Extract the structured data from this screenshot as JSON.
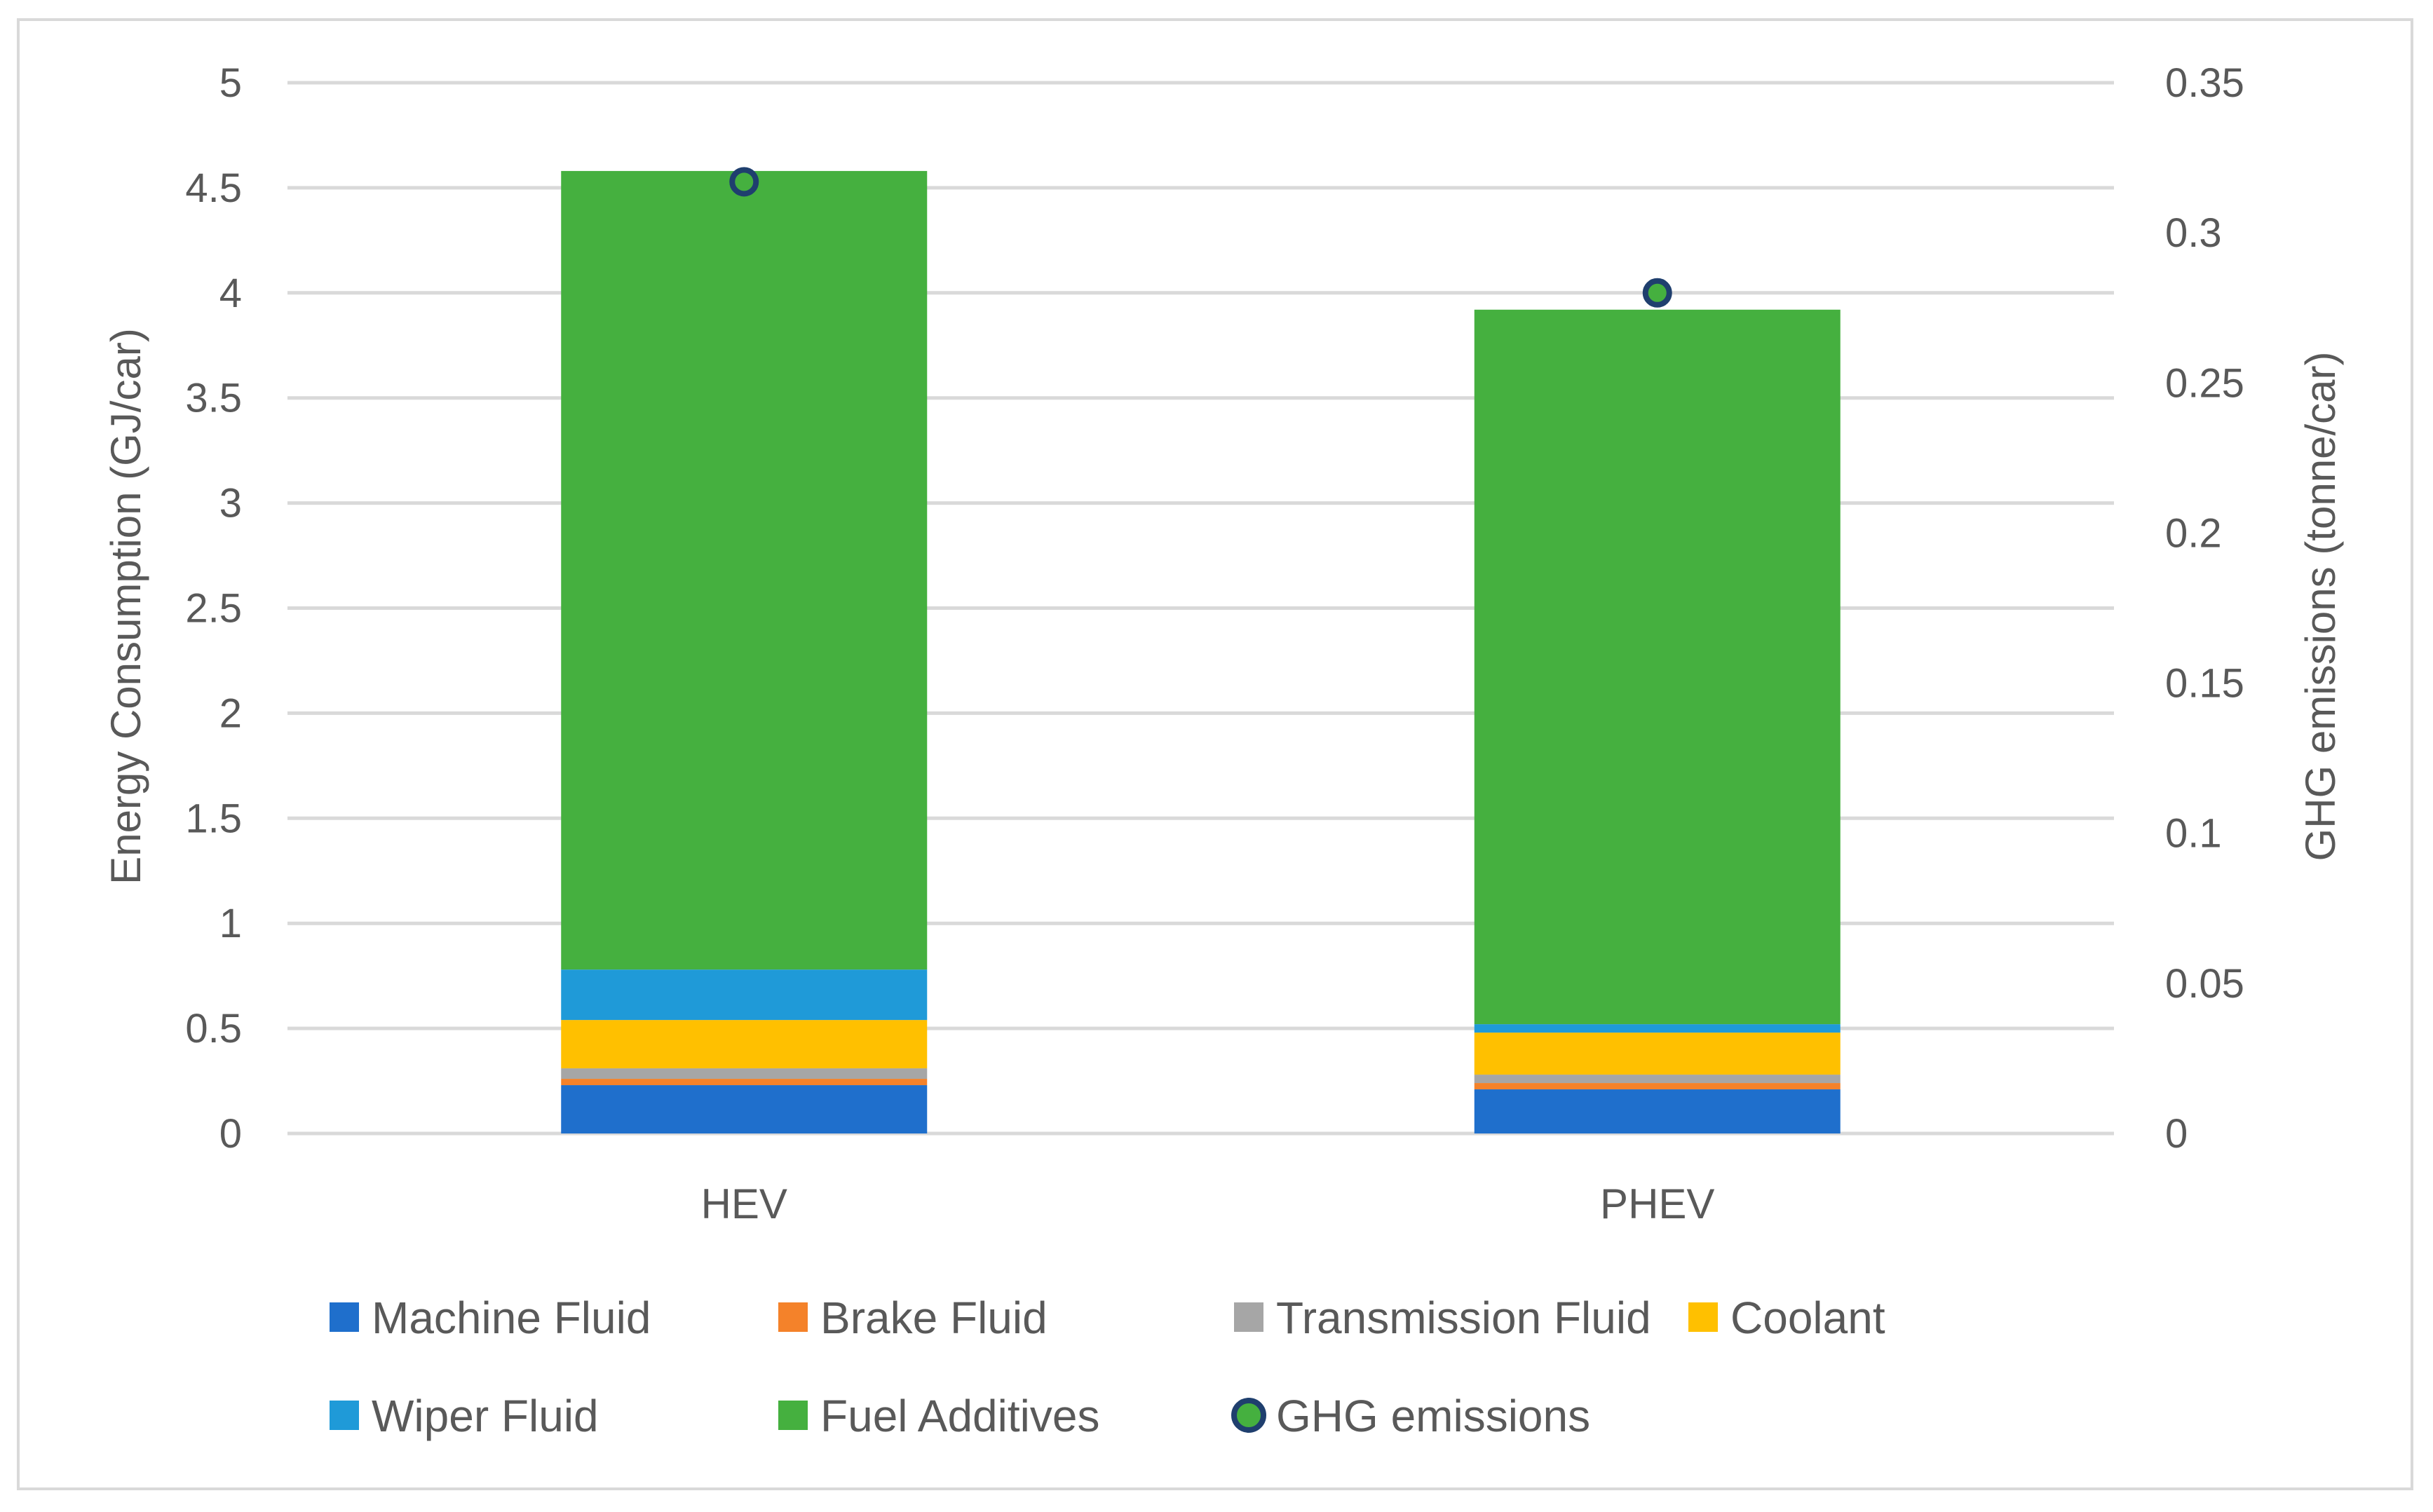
{
  "chart_data": {
    "type": "bar",
    "stacked": true,
    "categories": [
      "HEV",
      "PHEV"
    ],
    "series": [
      {
        "name": "Machine Fluid",
        "color": "#1f6fcc",
        "values": [
          0.23,
          0.21
        ]
      },
      {
        "name": "Brake Fluid",
        "color": "#f4822a",
        "values": [
          0.03,
          0.03
        ]
      },
      {
        "name": "Transmission Fluid",
        "color": "#a6a6a6",
        "values": [
          0.05,
          0.04
        ]
      },
      {
        "name": "Coolant",
        "color": "#ffc000",
        "values": [
          0.23,
          0.2
        ]
      },
      {
        "name": "Wiper Fluid",
        "color": "#1f9ad8",
        "values": [
          0.24,
          0.04
        ]
      },
      {
        "name": "Fuel Additives",
        "color": "#45b03f",
        "values": [
          3.8,
          3.4
        ]
      }
    ],
    "line_series": {
      "name": "GHG emissions",
      "axis": "right",
      "values": [
        0.317,
        0.28
      ],
      "marker_fill": "#45b03f",
      "marker_stroke": "#1f3f6e"
    },
    "ylabel": "Energy Consumption (GJ/car)",
    "y2label": "GHG emissions (tonne/car)",
    "ylim": [
      0,
      5
    ],
    "yticks": [
      "0",
      "0.5",
      "1",
      "1.5",
      "2",
      "2.5",
      "3",
      "3.5",
      "4",
      "4.5",
      "5"
    ],
    "y2lim": [
      0,
      0.35
    ],
    "y2ticks": [
      "0",
      "0.05",
      "0.1",
      "0.15",
      "0.2",
      "0.25",
      "0.3",
      "0.35"
    ],
    "grid": true,
    "legend_position": "bottom"
  }
}
